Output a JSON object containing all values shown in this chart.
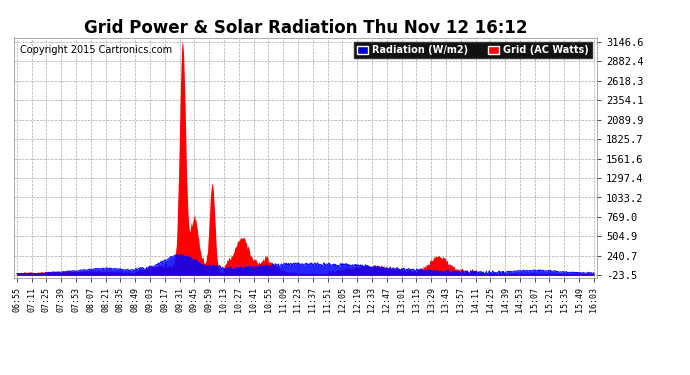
{
  "title": "Grid Power & Solar Radiation Thu Nov 12 16:12",
  "copyright": "Copyright 2015 Cartronics.com",
  "bg_color": "#ffffff",
  "plot_bg_color": "#ffffff",
  "yticks": [
    -23.5,
    240.7,
    504.9,
    769.0,
    1033.2,
    1297.4,
    1561.6,
    1825.7,
    2089.9,
    2354.1,
    2618.3,
    2882.4,
    3146.6
  ],
  "ymin": -23.5,
  "ymax": 3146.6,
  "radiation_color": "#0000ff",
  "grid_fill": "#ff0000",
  "legend_radiation_bg": "#0000cc",
  "legend_grid_bg": "#ff0000",
  "title_fontsize": 12,
  "copyright_fontsize": 7,
  "xtick_labels": [
    "06:55",
    "07:11",
    "07:25",
    "07:39",
    "07:53",
    "08:07",
    "08:21",
    "08:35",
    "08:49",
    "09:03",
    "09:17",
    "09:31",
    "09:45",
    "09:59",
    "10:13",
    "10:27",
    "10:41",
    "10:55",
    "11:09",
    "11:23",
    "11:37",
    "11:51",
    "12:05",
    "12:19",
    "12:33",
    "12:47",
    "13:01",
    "13:15",
    "13:29",
    "13:43",
    "13:57",
    "14:11",
    "14:25",
    "14:39",
    "14:53",
    "15:07",
    "15:21",
    "15:35",
    "15:49",
    "16:03"
  ]
}
